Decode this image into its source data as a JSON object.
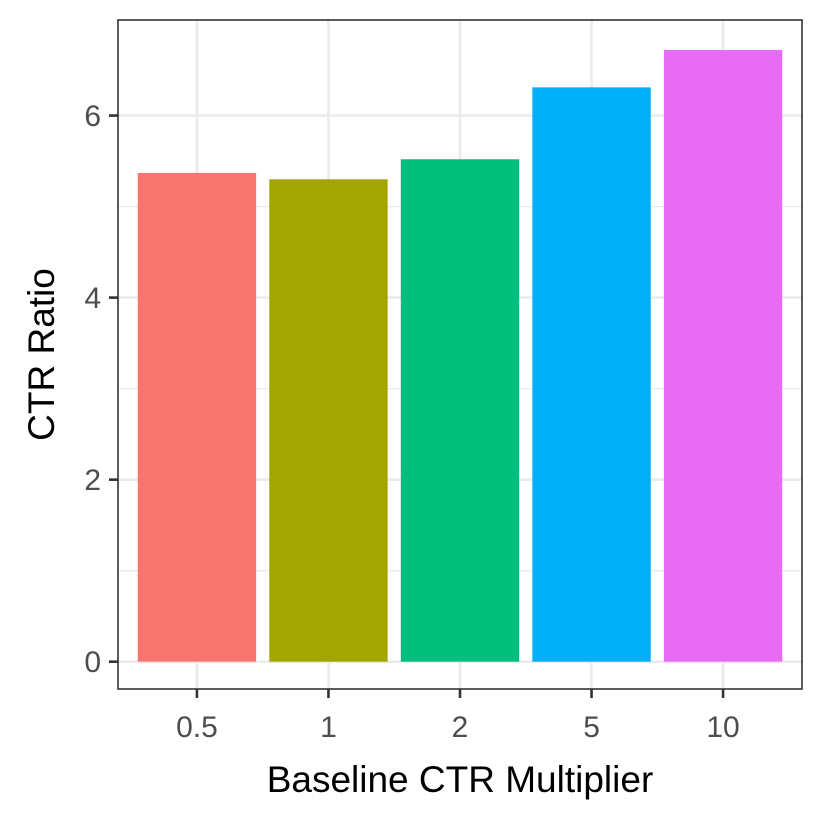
{
  "chart_data": {
    "type": "bar",
    "categories": [
      "0.5",
      "1",
      "2",
      "5",
      "10"
    ],
    "values": [
      5.37,
      5.3,
      5.52,
      6.31,
      6.72
    ],
    "colors": [
      "#F8766D",
      "#A3A500",
      "#00BF7D",
      "#00B0F6",
      "#E76BF3"
    ],
    "title": "",
    "xlabel": "Baseline CTR Multiplier",
    "ylabel": "CTR Ratio",
    "ylim": [
      -0.3,
      7.05
    ],
    "yticks": [
      0,
      2,
      4,
      6
    ],
    "yticks_minor": [
      1,
      3,
      5
    ],
    "ytick_labels": [
      "0",
      "2",
      "4",
      "6"
    ],
    "grid": true,
    "legend": "none"
  }
}
